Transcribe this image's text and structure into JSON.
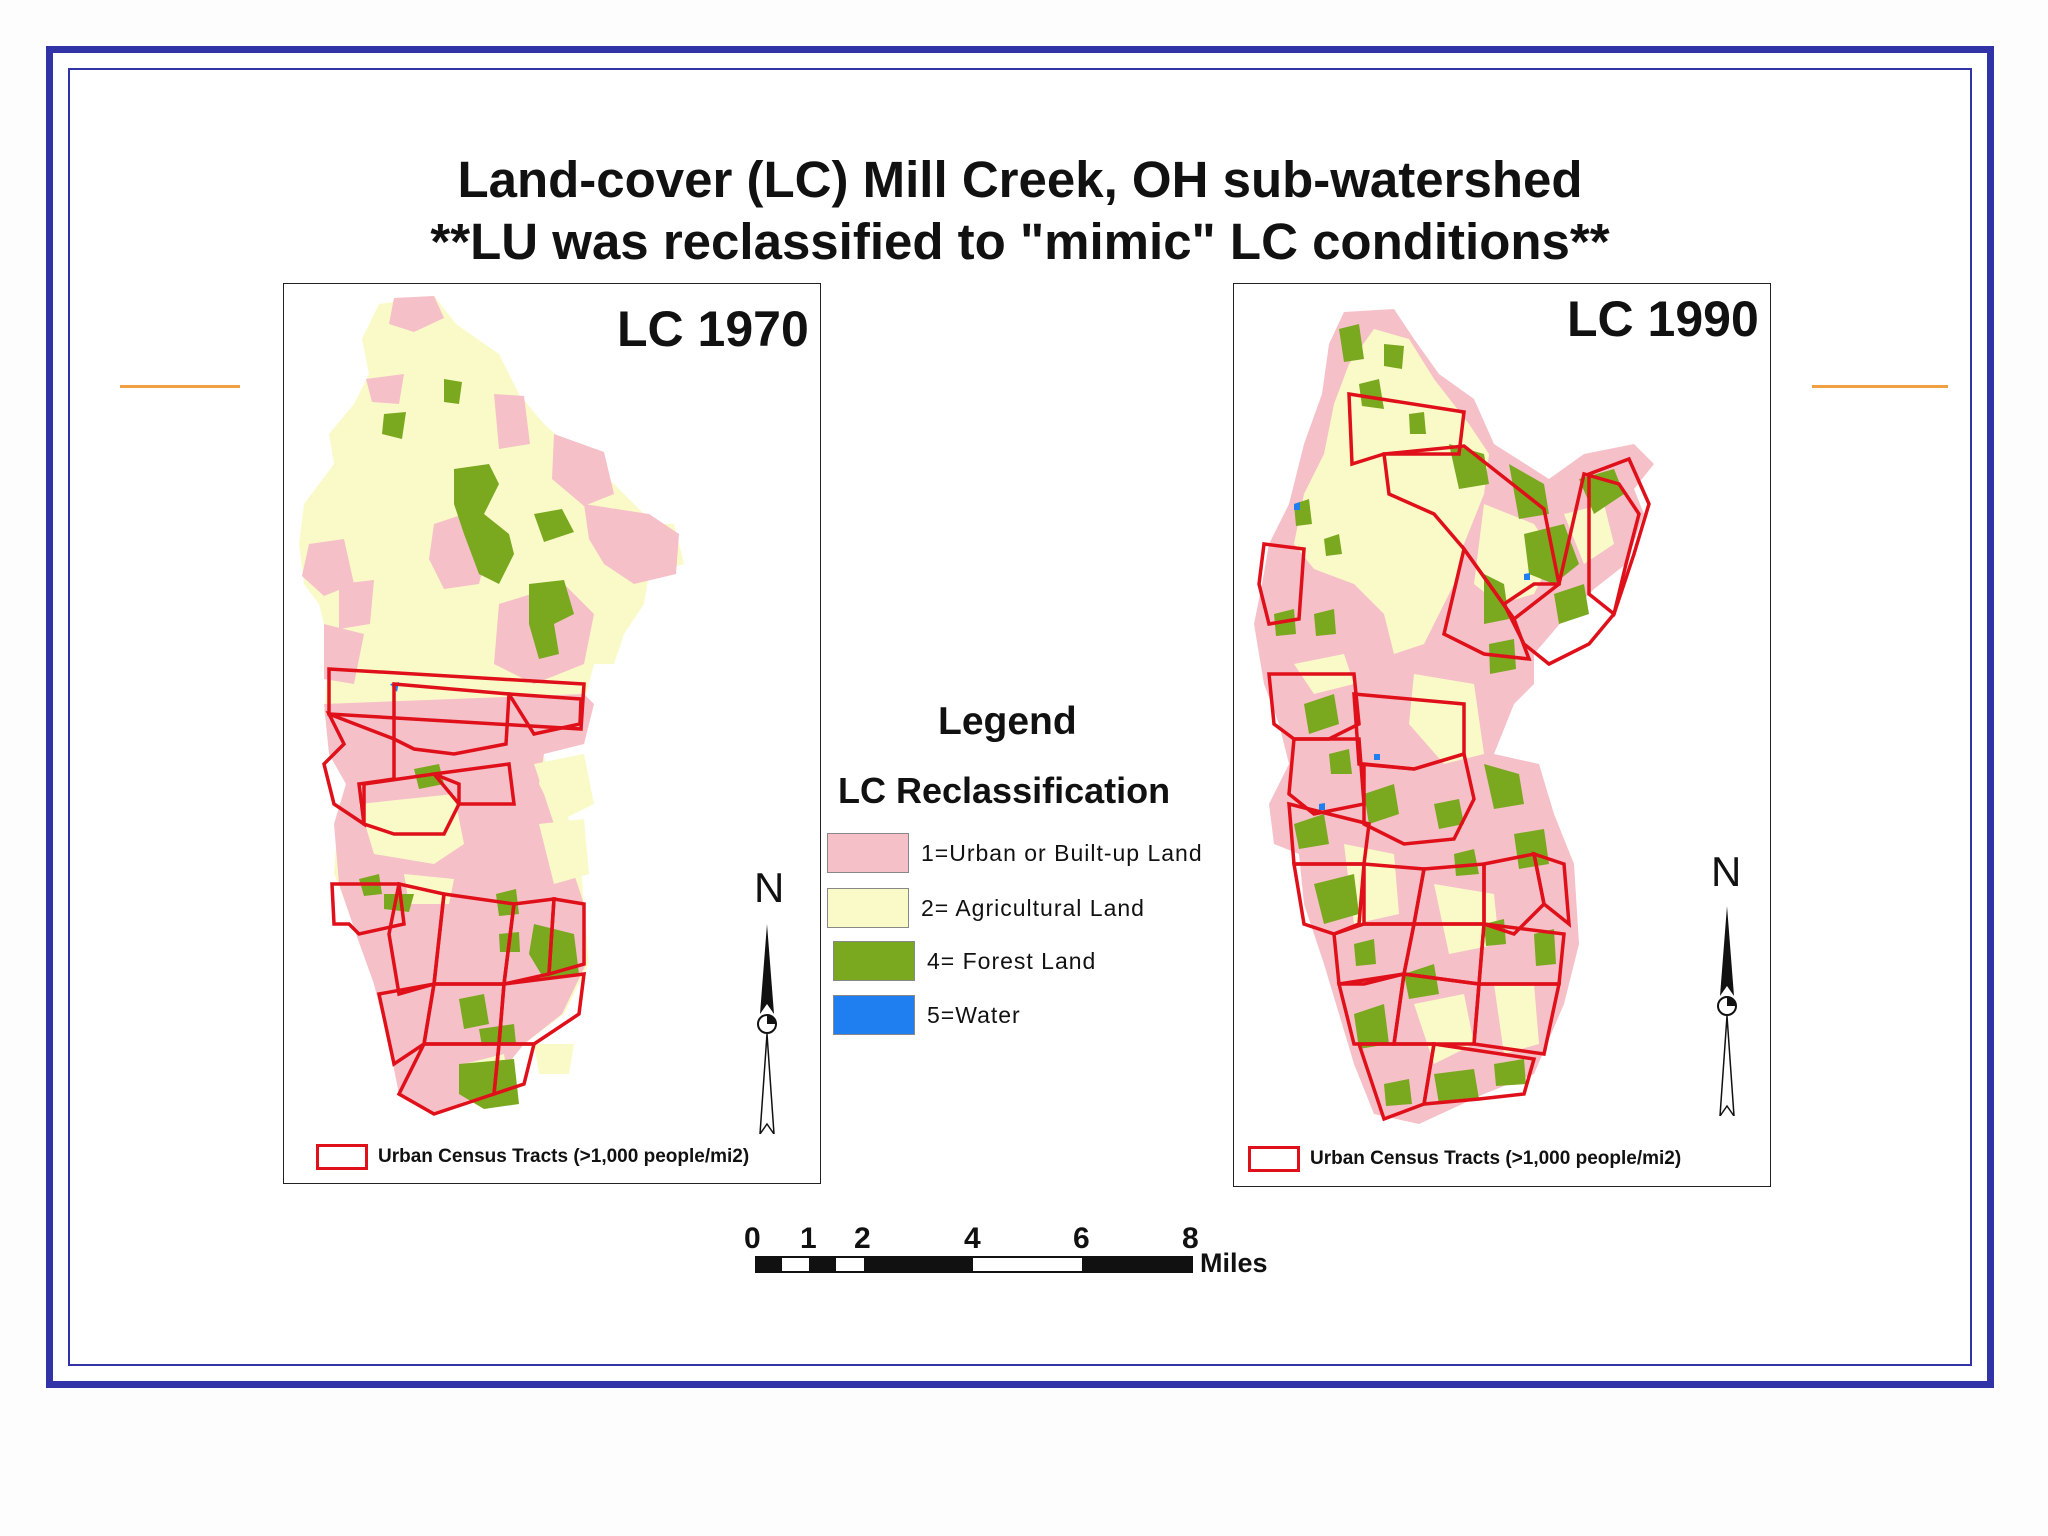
{
  "title": {
    "line1": "Land-cover (LC) Mill Creek, OH sub-watershed",
    "line2": "**LU was reclassified to \"mimic\" LC conditions**"
  },
  "maps": [
    {
      "label": "LC 1970",
      "north": "N",
      "tract_key": "Urban Census Tracts (>1,000 people/mi2)"
    },
    {
      "label": "LC 1990",
      "north": "N",
      "tract_key": "Urban Census Tracts (>1,000 people/mi2)"
    }
  ],
  "legend": {
    "heading": "Legend",
    "subheading": "LC Reclassification",
    "items": [
      {
        "label": "1=Urban or Built-up Land",
        "color": "#f5c0c8"
      },
      {
        "label": "2= Agricultural Land",
        "color": "#fafac8"
      },
      {
        "label": "4= Forest Land",
        "color": "#7aa81e"
      },
      {
        "label": "5=Water",
        "color": "#1f7ff0"
      }
    ]
  },
  "scale_bar": {
    "ticks": [
      "0",
      "1",
      "2",
      "4",
      "6",
      "8"
    ],
    "unit": "Miles"
  },
  "colors": {
    "frame": "#3333a8",
    "tract_outline": "#e0101a",
    "accent": "#f0a040"
  }
}
